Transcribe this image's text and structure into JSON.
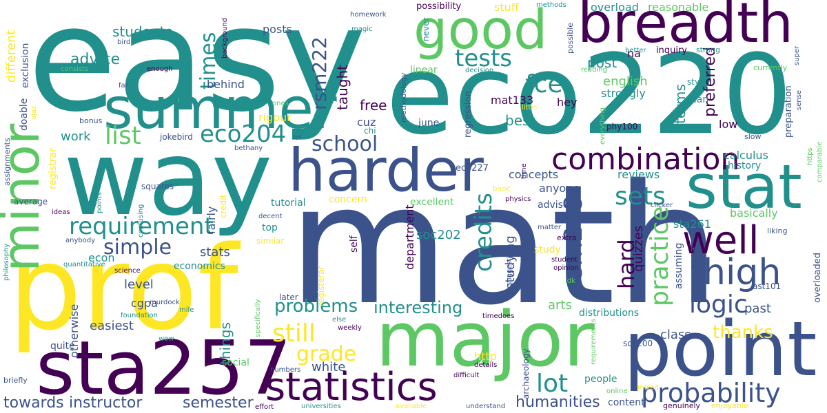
{
  "colors": {
    "background": "#ffffff",
    "palette": [
      "#440154",
      "#3b528b",
      "#21908c",
      "#5dc863",
      "#fde725"
    ]
  },
  "words": [
    {
      "t": "easy",
      "c": 2,
      "r": 0
    },
    {
      "t": "eco220",
      "c": 2,
      "r": 0
    },
    {
      "t": "math",
      "c": 1,
      "r": 0
    },
    {
      "t": "way",
      "c": 2,
      "r": 0
    },
    {
      "t": "prof",
      "c": 4,
      "r": 0
    },
    {
      "t": "major",
      "c": 3,
      "r": 0
    },
    {
      "t": "sta257",
      "c": 0,
      "r": 0
    },
    {
      "t": "point",
      "c": 1,
      "r": 0
    },
    {
      "t": "breadth",
      "c": 0,
      "r": 0
    },
    {
      "t": "good",
      "c": 3,
      "r": 0
    },
    {
      "t": "summer",
      "c": 2,
      "r": 0
    },
    {
      "t": "harder",
      "c": 1,
      "r": 0
    },
    {
      "t": "stat",
      "c": 2,
      "r": 0
    },
    {
      "t": "minor",
      "c": 3,
      "r": 1
    },
    {
      "t": "statistics",
      "c": 0,
      "r": 0
    },
    {
      "t": "combination",
      "c": 0,
      "r": 0
    },
    {
      "t": "well",
      "c": 0,
      "r": 0
    },
    {
      "t": "high",
      "c": 1,
      "r": 0
    },
    {
      "t": "probability",
      "c": 1,
      "r": 0
    },
    {
      "t": "requirement",
      "c": 2,
      "r": 0
    },
    {
      "t": "logic",
      "c": 1,
      "r": 0
    },
    {
      "t": "still",
      "c": 4,
      "r": 0
    },
    {
      "t": "lot",
      "c": 2,
      "r": 0
    },
    {
      "t": "eco204",
      "c": 2,
      "r": 0
    },
    {
      "t": "tests",
      "c": 2,
      "r": 0
    },
    {
      "t": "fce",
      "c": 2,
      "r": 0
    },
    {
      "t": "list",
      "c": 3,
      "r": 0
    },
    {
      "t": "school",
      "c": 1,
      "r": 0
    },
    {
      "t": "simple",
      "c": 1,
      "r": 0
    },
    {
      "t": "sets",
      "c": 2,
      "r": 0
    },
    {
      "t": "rsm219",
      "c": 1,
      "r": 1
    },
    {
      "t": "rsm222",
      "c": 1,
      "r": 1
    },
    {
      "t": "times",
      "c": 2,
      "r": 1
    },
    {
      "t": "credits",
      "c": 2,
      "r": 1
    },
    {
      "t": "practice",
      "c": 3,
      "r": 1
    },
    {
      "t": "hard",
      "c": 0,
      "r": 1
    },
    {
      "t": "grade",
      "c": 4,
      "r": 0
    },
    {
      "t": "problems",
      "c": 2,
      "r": 0
    },
    {
      "t": "interesting",
      "c": 2,
      "r": 0
    },
    {
      "t": "thanks",
      "c": 4,
      "r": 0
    },
    {
      "t": "humanities",
      "c": 1,
      "r": 0
    },
    {
      "t": "instructor",
      "c": 1,
      "r": 0
    },
    {
      "t": "semester",
      "c": 1,
      "r": 0
    },
    {
      "t": "towards",
      "c": 1,
      "r": 0
    },
    {
      "t": "students",
      "c": 2,
      "r": 0
    },
    {
      "t": "advice",
      "c": 2,
      "r": 0
    },
    {
      "t": "post",
      "c": 2,
      "r": 0
    },
    {
      "t": "english",
      "c": 3,
      "r": 0
    },
    {
      "t": "strongly",
      "c": 2,
      "r": 0
    },
    {
      "t": "preferred",
      "c": 0,
      "r": 1
    },
    {
      "t": "terms",
      "c": 2,
      "r": 1
    },
    {
      "t": "taught",
      "c": 0,
      "r": 1
    },
    {
      "t": "free",
      "c": 0,
      "r": 0
    },
    {
      "t": "overload",
      "c": 2,
      "r": 0
    },
    {
      "t": "reasonable",
      "c": 3,
      "r": 0
    },
    {
      "t": "possibility",
      "c": 0,
      "r": 0
    },
    {
      "t": "stuff",
      "c": 4,
      "r": 0
    },
    {
      "t": "methods",
      "c": 2,
      "r": 0
    },
    {
      "t": "na",
      "c": 0,
      "r": 0
    },
    {
      "t": "inquiry",
      "c": 0,
      "r": 0
    },
    {
      "t": "strong",
      "c": 2,
      "r": 0
    },
    {
      "t": "better",
      "c": 2,
      "r": 0
    },
    {
      "t": "currently",
      "c": 3,
      "r": 0
    },
    {
      "t": "reading",
      "c": 3,
      "r": 0
    },
    {
      "t": "decision",
      "c": 2,
      "r": 0
    },
    {
      "t": "linear",
      "c": 3,
      "r": 0
    },
    {
      "t": "mat133",
      "c": 0,
      "r": 0
    },
    {
      "t": "hey",
      "c": 0,
      "r": 0
    },
    {
      "t": "style",
      "c": 2,
      "r": 0
    },
    {
      "t": "plan",
      "c": 2,
      "r": 0
    },
    {
      "t": "little",
      "c": 4,
      "r": 0
    },
    {
      "t": "best",
      "c": 2,
      "r": 0
    },
    {
      "t": "june",
      "c": 1,
      "r": 0
    },
    {
      "t": "cuz",
      "c": 1,
      "r": 0
    },
    {
      "t": "chi",
      "c": 2,
      "r": 0
    },
    {
      "t": "low",
      "c": 0,
      "r": 0
    },
    {
      "t": "phy100",
      "c": 0,
      "r": 0
    },
    {
      "t": "eco227",
      "c": 1,
      "r": 0
    },
    {
      "t": "calculus",
      "c": 2,
      "r": 0
    },
    {
      "t": "history",
      "c": 2,
      "r": 0
    },
    {
      "t": "concepts",
      "c": 1,
      "r": 0
    },
    {
      "t": "reviews",
      "c": 2,
      "r": 0
    },
    {
      "t": "anyone",
      "c": 1,
      "r": 0
    },
    {
      "t": "adviser",
      "c": 1,
      "r": 0
    },
    {
      "t": "basically",
      "c": 3,
      "r": 0
    },
    {
      "t": "sta261",
      "c": 2,
      "r": 0
    },
    {
      "t": "excellent",
      "c": 3,
      "r": 0
    },
    {
      "t": "concern",
      "c": 4,
      "r": 0
    },
    {
      "t": "tutorial",
      "c": 2,
      "r": 0
    },
    {
      "t": "top",
      "c": 2,
      "r": 0
    },
    {
      "t": "similar",
      "c": 4,
      "r": 0
    },
    {
      "t": "soc202",
      "c": 2,
      "r": 0
    },
    {
      "t": "stats",
      "c": 1,
      "r": 0
    },
    {
      "t": "econ",
      "c": 2,
      "r": 0
    },
    {
      "t": "economics",
      "c": 2,
      "r": 0
    },
    {
      "t": "level",
      "c": 1,
      "r": 0
    },
    {
      "t": "cgpa",
      "c": 1,
      "r": 0
    },
    {
      "t": "easiest",
      "c": 1,
      "r": 0
    },
    {
      "t": "quite",
      "c": 1,
      "r": 0
    },
    {
      "t": "white",
      "c": 1,
      "r": 0
    },
    {
      "t": "http",
      "c": 4,
      "r": 0
    },
    {
      "t": "arts",
      "c": 3,
      "r": 0
    },
    {
      "t": "class",
      "c": 1,
      "r": 0
    },
    {
      "t": "past",
      "c": 1,
      "r": 0
    },
    {
      "t": "distributions",
      "c": 2,
      "r": 0
    },
    {
      "t": "people",
      "c": 2,
      "r": 0
    },
    {
      "t": "content",
      "c": 1,
      "r": 0
    },
    {
      "t": "soc200",
      "c": 1,
      "r": 0
    },
    {
      "t": "study",
      "c": 4,
      "r": 0
    },
    {
      "t": "student",
      "c": 0,
      "r": 0
    },
    {
      "t": "opinion",
      "c": 0,
      "r": 0
    },
    {
      "t": "extra",
      "c": 0,
      "r": 0
    },
    {
      "t": "matter",
      "c": 1,
      "r": 0
    },
    {
      "t": "idk",
      "c": 3,
      "r": 0
    },
    {
      "t": "timedoes",
      "c": 0,
      "r": 0
    },
    {
      "t": "ast101",
      "c": 1,
      "r": 0
    },
    {
      "t": "clicker",
      "c": 1,
      "r": 0
    },
    {
      "t": "liking",
      "c": 1,
      "r": 0
    },
    {
      "t": "slow",
      "c": 1,
      "r": 0
    },
    {
      "t": "physics",
      "c": 0,
      "r": 0
    },
    {
      "t": "basic",
      "c": 4,
      "r": 0
    },
    {
      "t": "details",
      "c": 0,
      "r": 0
    },
    {
      "t": "difficult",
      "c": 0,
      "r": 0
    },
    {
      "t": "mixed",
      "c": 4,
      "r": 0
    },
    {
      "t": "online",
      "c": 3,
      "r": 0
    },
    {
      "t": "genuinely",
      "c": 0,
      "r": 0
    },
    {
      "t": "enjoyable",
      "c": 4,
      "r": 0
    },
    {
      "t": "understand",
      "c": 1,
      "r": 0
    },
    {
      "t": "available",
      "c": 4,
      "r": 0
    },
    {
      "t": "universities",
      "c": 2,
      "r": 0
    },
    {
      "t": "effort",
      "c": 0,
      "r": 0
    },
    {
      "t": "numbers",
      "c": 1,
      "r": 0
    },
    {
      "t": "social",
      "c": 3,
      "r": 0
    },
    {
      "t": "weekly",
      "c": 0,
      "r": 0
    },
    {
      "t": "else",
      "c": 2,
      "r": 0
    },
    {
      "t": "later",
      "c": 1,
      "r": 0
    },
    {
      "t": "decent",
      "c": 1,
      "r": 0
    },
    {
      "t": "rigour",
      "c": 4,
      "r": 0
    },
    {
      "t": "ones",
      "c": 3,
      "r": 0
    },
    {
      "t": "lol",
      "c": 1,
      "r": 0
    },
    {
      "t": "bethany",
      "c": 1,
      "r": 0
    },
    {
      "t": "squares",
      "c": 1,
      "r": 0
    },
    {
      "t": "confusing",
      "c": 2,
      "r": 1
    },
    {
      "t": "credit",
      "c": 4,
      "r": 1
    },
    {
      "t": "fairly",
      "c": 1,
      "r": 1
    },
    {
      "t": "jokebird",
      "c": 1,
      "r": 0
    },
    {
      "t": "work",
      "c": 2,
      "r": 0
    },
    {
      "t": "behind",
      "c": 1,
      "r": 0
    },
    {
      "t": "posts",
      "c": 1,
      "r": 0
    },
    {
      "t": "magic",
      "c": 2,
      "r": 0
    },
    {
      "t": "homework",
      "c": 1,
      "r": 0
    },
    {
      "t": "bird",
      "c": 1,
      "r": 0
    },
    {
      "t": "enough",
      "c": 0,
      "r": 0
    },
    {
      "t": "far",
      "c": 1,
      "r": 0
    },
    {
      "t": "bonus",
      "c": 1,
      "r": 0
    },
    {
      "t": "consists",
      "c": 3,
      "r": 0
    },
    {
      "t": "average",
      "c": 1,
      "r": 0
    },
    {
      "t": "ideas",
      "c": 0,
      "r": 0
    },
    {
      "t": "anybody",
      "c": 1,
      "r": 0
    },
    {
      "t": "quantitative",
      "c": 2,
      "r": 0
    },
    {
      "t": "science",
      "c": 0,
      "r": 0
    },
    {
      "t": "foundation",
      "c": 2,
      "r": 0
    },
    {
      "t": "murdock",
      "c": 1,
      "r": 0
    },
    {
      "t": "mile",
      "c": 2,
      "r": 0
    },
    {
      "t": "wow",
      "c": 2,
      "r": 0
    },
    {
      "t": "briefly",
      "c": 1,
      "r": 0
    },
    {
      "t": "otherwise",
      "c": 1,
      "r": 1
    },
    {
      "t": "things",
      "c": 2,
      "r": 1
    },
    {
      "t": "department",
      "c": 0,
      "r": 1
    },
    {
      "t": "studying",
      "c": 1,
      "r": 1
    },
    {
      "t": "quizzes",
      "c": 0,
      "r": 1
    },
    {
      "t": "registrar",
      "c": 4,
      "r": 1
    },
    {
      "t": "registerar",
      "c": 4,
      "r": 1
    },
    {
      "t": "self",
      "c": 0,
      "r": 1
    },
    {
      "t": "regression",
      "c": 1,
      "r": 1
    },
    {
      "t": "methodology",
      "c": 1,
      "r": 1
    },
    {
      "t": "archaeology",
      "c": 1,
      "r": 1
    },
    {
      "t": "suggestions",
      "c": 1,
      "r": 1
    },
    {
      "t": "specifically",
      "c": 3,
      "r": 1
    },
    {
      "t": "assuming",
      "c": 1,
      "r": 1
    },
    {
      "t": "sgpa",
      "c": 1,
      "r": 1
    },
    {
      "t": "overloaded",
      "c": 1,
      "r": 1
    },
    {
      "t": "preparation",
      "c": 1,
      "r": 1
    },
    {
      "t": "sense",
      "c": 1,
      "r": 1
    },
    {
      "t": "comparable",
      "c": 3,
      "r": 1
    },
    {
      "t": "https",
      "c": 3,
      "r": 1
    },
    {
      "t": "super",
      "c": 1,
      "r": 1
    },
    {
      "t": "possible",
      "c": 1,
      "r": 1
    },
    {
      "t": "everything",
      "c": 3,
      "r": 1
    },
    {
      "t": "requirements",
      "c": 3,
      "r": 1
    },
    {
      "t": "time",
      "c": 0,
      "r": 1
    },
    {
      "t": "never",
      "c": 2,
      "r": 1
    },
    {
      "t": "background",
      "c": 0,
      "r": 1
    },
    {
      "t": "different",
      "c": 4,
      "r": 1
    },
    {
      "t": "exclusion",
      "c": 1,
      "r": 1
    },
    {
      "t": "doable",
      "c": 1,
      "r": 1
    },
    {
      "t": "ajaz",
      "c": 4,
      "r": 1
    },
    {
      "t": "assignments",
      "c": 1,
      "r": 1
    },
    {
      "t": "points",
      "c": 2,
      "r": 1
    },
    {
      "t": "philosophy",
      "c": 2,
      "r": 1
    }
  ]
}
